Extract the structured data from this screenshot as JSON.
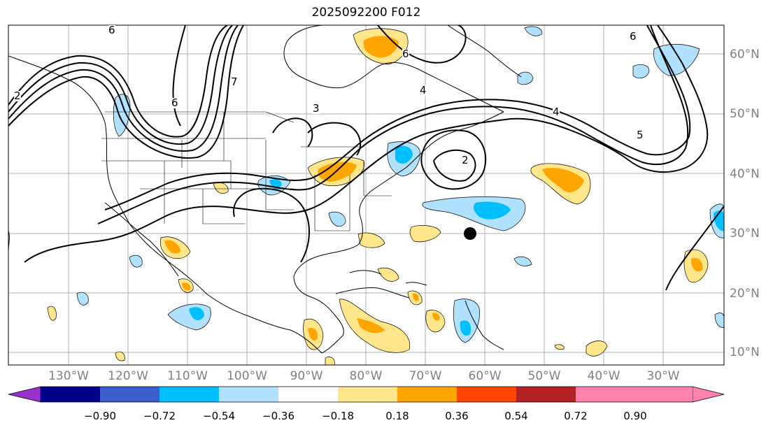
{
  "title": "2025092200 F012",
  "lat_labels": [
    "60°N",
    "50°N",
    "40°N",
    "30°N",
    "20°N",
    "10°N"
  ],
  "lon_labels": [
    "130°W",
    "120°W",
    "110°W",
    "100°W",
    "90°W",
    "80°W",
    "70°W",
    "60°W",
    "50°W",
    "40°W",
    "30°W"
  ],
  "contour_labels": [
    "6",
    "6",
    "6",
    "7",
    "3",
    "4",
    "4",
    "5",
    "2",
    "2",
    "6"
  ],
  "colorbar": {
    "ticks": [
      "−0.90",
      "−0.72",
      "−0.54",
      "−0.36",
      "−0.18",
      "0.18",
      "0.36",
      "0.54",
      "0.72",
      "0.90"
    ],
    "colors": [
      "#9932cc",
      "#00008b",
      "#3a5fcd",
      "#00bfff",
      "#b0e2ff",
      "#ffffff",
      "#ffe68a",
      "#ffa500",
      "#ff4500",
      "#b22222",
      "#ff82ab"
    ]
  },
  "marker": {
    "lon": -64,
    "lat": 30
  }
}
